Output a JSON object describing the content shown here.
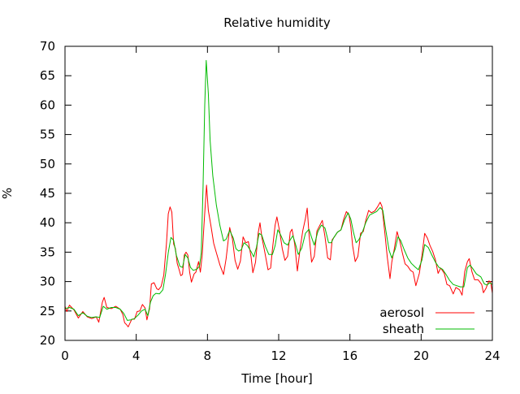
{
  "chart_data": {
    "type": "line",
    "title": "Relative humidity",
    "xlabel": "Time [hour]",
    "ylabel": "%",
    "xlim": [
      0,
      24
    ],
    "ylim": [
      20,
      70
    ],
    "x_ticks": [
      "0",
      "4",
      "8",
      "12",
      "16",
      "20",
      "24"
    ],
    "y_ticks": [
      "20",
      "25",
      "30",
      "35",
      "40",
      "45",
      "50",
      "55",
      "60",
      "65",
      "70"
    ],
    "grid": false,
    "legend_position": "bottom-right",
    "series": [
      {
        "name": "aerosol",
        "color": "#ff0000",
        "points": [
          [
            0.0,
            25.8
          ],
          [
            0.1,
            24.9
          ],
          [
            0.25,
            26.0
          ],
          [
            0.5,
            25.2
          ],
          [
            0.75,
            23.8
          ],
          [
            1.0,
            24.9
          ],
          [
            1.25,
            24.0
          ],
          [
            1.5,
            23.7
          ],
          [
            1.75,
            24.0
          ],
          [
            1.9,
            23.1
          ],
          [
            2.1,
            26.5
          ],
          [
            2.2,
            27.3
          ],
          [
            2.35,
            25.6
          ],
          [
            2.6,
            25.4
          ],
          [
            2.85,
            25.8
          ],
          [
            3.1,
            25.3
          ],
          [
            3.25,
            24.4
          ],
          [
            3.35,
            23.0
          ],
          [
            3.45,
            22.7
          ],
          [
            3.55,
            22.3
          ],
          [
            3.75,
            23.6
          ],
          [
            3.9,
            23.6
          ],
          [
            4.05,
            24.9
          ],
          [
            4.2,
            25.0
          ],
          [
            4.35,
            26.1
          ],
          [
            4.5,
            25.5
          ],
          [
            4.6,
            23.5
          ],
          [
            4.75,
            25.4
          ],
          [
            4.85,
            29.6
          ],
          [
            5.0,
            29.8
          ],
          [
            5.15,
            28.8
          ],
          [
            5.25,
            28.6
          ],
          [
            5.4,
            29.2
          ],
          [
            5.55,
            31.1
          ],
          [
            5.7,
            36.5
          ],
          [
            5.8,
            41.5
          ],
          [
            5.9,
            42.7
          ],
          [
            6.0,
            41.8
          ],
          [
            6.1,
            36.4
          ],
          [
            6.2,
            35.6
          ],
          [
            6.3,
            33.1
          ],
          [
            6.4,
            32.1
          ],
          [
            6.5,
            31.0
          ],
          [
            6.6,
            31.2
          ],
          [
            6.7,
            34.5
          ],
          [
            6.8,
            35.0
          ],
          [
            6.9,
            34.5
          ],
          [
            7.0,
            31.6
          ],
          [
            7.1,
            29.9
          ],
          [
            7.25,
            31.3
          ],
          [
            7.35,
            31.6
          ],
          [
            7.5,
            33.4
          ],
          [
            7.6,
            31.6
          ],
          [
            7.7,
            34.4
          ],
          [
            7.8,
            39.5
          ],
          [
            7.95,
            46.4
          ],
          [
            8.05,
            42.1
          ],
          [
            8.2,
            39.4
          ],
          [
            8.35,
            36.5
          ],
          [
            8.5,
            34.9
          ],
          [
            8.7,
            32.8
          ],
          [
            8.9,
            31.2
          ],
          [
            9.05,
            33.9
          ],
          [
            9.25,
            39.2
          ],
          [
            9.4,
            37.3
          ],
          [
            9.55,
            33.6
          ],
          [
            9.7,
            32.1
          ],
          [
            9.85,
            33.5
          ],
          [
            10.0,
            37.6
          ],
          [
            10.15,
            36.6
          ],
          [
            10.3,
            36.8
          ],
          [
            10.45,
            34.2
          ],
          [
            10.55,
            31.5
          ],
          [
            10.7,
            33.3
          ],
          [
            10.85,
            38.3
          ],
          [
            10.95,
            40.0
          ],
          [
            11.05,
            37.6
          ],
          [
            11.2,
            35.3
          ],
          [
            11.4,
            32.0
          ],
          [
            11.55,
            32.3
          ],
          [
            11.65,
            35.5
          ],
          [
            11.8,
            39.6
          ],
          [
            11.9,
            41.0
          ],
          [
            12.05,
            38.6
          ],
          [
            12.2,
            35.6
          ],
          [
            12.35,
            33.6
          ],
          [
            12.5,
            34.3
          ],
          [
            12.65,
            38.4
          ],
          [
            12.75,
            38.9
          ],
          [
            12.9,
            36.4
          ],
          [
            13.05,
            31.8
          ],
          [
            13.2,
            35.5
          ],
          [
            13.35,
            38.6
          ],
          [
            13.5,
            40.7
          ],
          [
            13.6,
            42.5
          ],
          [
            13.7,
            38.1
          ],
          [
            13.85,
            33.3
          ],
          [
            14.0,
            34.3
          ],
          [
            14.15,
            38.6
          ],
          [
            14.3,
            39.5
          ],
          [
            14.45,
            40.4
          ],
          [
            14.6,
            37.6
          ],
          [
            14.75,
            34.0
          ],
          [
            14.9,
            33.7
          ],
          [
            15.0,
            37.1
          ],
          [
            15.15,
            37.7
          ],
          [
            15.3,
            38.4
          ],
          [
            15.5,
            38.8
          ],
          [
            15.65,
            40.6
          ],
          [
            15.8,
            41.9
          ],
          [
            15.95,
            41.3
          ],
          [
            16.05,
            39.3
          ],
          [
            16.15,
            36.1
          ],
          [
            16.3,
            33.4
          ],
          [
            16.45,
            34.3
          ],
          [
            16.6,
            38.2
          ],
          [
            16.75,
            38.5
          ],
          [
            16.9,
            40.5
          ],
          [
            17.05,
            42.1
          ],
          [
            17.2,
            41.7
          ],
          [
            17.4,
            42.0
          ],
          [
            17.55,
            42.7
          ],
          [
            17.7,
            43.5
          ],
          [
            17.8,
            42.8
          ],
          [
            17.95,
            38.6
          ],
          [
            18.1,
            34.1
          ],
          [
            18.25,
            30.5
          ],
          [
            18.35,
            33.3
          ],
          [
            18.5,
            35.7
          ],
          [
            18.65,
            38.5
          ],
          [
            18.8,
            36.9
          ],
          [
            18.95,
            34.8
          ],
          [
            19.1,
            33.0
          ],
          [
            19.25,
            32.6
          ],
          [
            19.4,
            31.9
          ],
          [
            19.55,
            31.6
          ],
          [
            19.7,
            29.3
          ],
          [
            19.9,
            31.4
          ],
          [
            20.05,
            34.5
          ],
          [
            20.2,
            38.2
          ],
          [
            20.35,
            37.4
          ],
          [
            20.5,
            36.1
          ],
          [
            20.65,
            35.1
          ],
          [
            20.8,
            33.7
          ],
          [
            20.95,
            31.4
          ],
          [
            21.1,
            32.3
          ],
          [
            21.3,
            31.4
          ],
          [
            21.45,
            29.5
          ],
          [
            21.6,
            29.3
          ],
          [
            21.8,
            27.9
          ],
          [
            21.95,
            29.0
          ],
          [
            22.15,
            28.6
          ],
          [
            22.3,
            27.7
          ],
          [
            22.45,
            31.7
          ],
          [
            22.6,
            33.4
          ],
          [
            22.7,
            33.9
          ],
          [
            22.85,
            31.7
          ],
          [
            23.0,
            30.3
          ],
          [
            23.2,
            30.3
          ],
          [
            23.4,
            29.5
          ],
          [
            23.5,
            28.1
          ],
          [
            23.65,
            28.9
          ],
          [
            23.8,
            30.1
          ],
          [
            23.9,
            30.0
          ],
          [
            24.0,
            28.0
          ]
        ]
      },
      {
        "name": "sheath",
        "color": "#00bb00",
        "points": [
          [
            0.0,
            25.4
          ],
          [
            0.25,
            25.6
          ],
          [
            0.5,
            25.3
          ],
          [
            0.75,
            24.2
          ],
          [
            1.0,
            24.7
          ],
          [
            1.25,
            24.1
          ],
          [
            1.5,
            23.9
          ],
          [
            1.75,
            24.0
          ],
          [
            1.95,
            23.9
          ],
          [
            2.15,
            25.8
          ],
          [
            2.35,
            25.3
          ],
          [
            2.6,
            25.6
          ],
          [
            2.85,
            25.6
          ],
          [
            3.1,
            25.3
          ],
          [
            3.3,
            24.6
          ],
          [
            3.5,
            23.4
          ],
          [
            3.7,
            23.5
          ],
          [
            3.9,
            23.7
          ],
          [
            4.1,
            24.3
          ],
          [
            4.3,
            25.0
          ],
          [
            4.5,
            25.3
          ],
          [
            4.65,
            24.2
          ],
          [
            4.8,
            26.5
          ],
          [
            4.95,
            27.6
          ],
          [
            5.1,
            28.0
          ],
          [
            5.3,
            27.9
          ],
          [
            5.5,
            28.6
          ],
          [
            5.65,
            31.3
          ],
          [
            5.8,
            34.9
          ],
          [
            5.95,
            37.5
          ],
          [
            6.1,
            37.0
          ],
          [
            6.25,
            34.5
          ],
          [
            6.45,
            32.6
          ],
          [
            6.6,
            32.4
          ],
          [
            6.75,
            34.6
          ],
          [
            6.9,
            34.0
          ],
          [
            7.05,
            32.4
          ],
          [
            7.2,
            31.9
          ],
          [
            7.4,
            32.1
          ],
          [
            7.55,
            32.6
          ],
          [
            7.65,
            34.9
          ],
          [
            7.75,
            46.0
          ],
          [
            7.85,
            60.0
          ],
          [
            7.93,
            67.6
          ],
          [
            8.05,
            62.0
          ],
          [
            8.15,
            54.0
          ],
          [
            8.3,
            48.0
          ],
          [
            8.5,
            43.0
          ],
          [
            8.7,
            39.5
          ],
          [
            8.9,
            36.9
          ],
          [
            9.05,
            37.2
          ],
          [
            9.25,
            38.7
          ],
          [
            9.45,
            37.4
          ],
          [
            9.6,
            35.6
          ],
          [
            9.75,
            35.2
          ],
          [
            9.9,
            35.4
          ],
          [
            10.05,
            36.6
          ],
          [
            10.25,
            36.1
          ],
          [
            10.45,
            35.1
          ],
          [
            10.6,
            34.2
          ],
          [
            10.75,
            35.8
          ],
          [
            10.9,
            38.2
          ],
          [
            11.05,
            37.9
          ],
          [
            11.25,
            36.0
          ],
          [
            11.45,
            34.6
          ],
          [
            11.65,
            34.6
          ],
          [
            11.8,
            36.1
          ],
          [
            11.95,
            38.8
          ],
          [
            12.1,
            38.0
          ],
          [
            12.3,
            36.6
          ],
          [
            12.5,
            36.2
          ],
          [
            12.65,
            37.1
          ],
          [
            12.8,
            37.8
          ],
          [
            12.95,
            36.3
          ],
          [
            13.1,
            34.6
          ],
          [
            13.3,
            35.7
          ],
          [
            13.5,
            38.2
          ],
          [
            13.7,
            38.9
          ],
          [
            13.85,
            37.5
          ],
          [
            14.0,
            36.2
          ],
          [
            14.2,
            38.5
          ],
          [
            14.4,
            39.6
          ],
          [
            14.6,
            39.1
          ],
          [
            14.8,
            36.6
          ],
          [
            14.95,
            36.6
          ],
          [
            15.1,
            37.5
          ],
          [
            15.3,
            38.4
          ],
          [
            15.5,
            38.8
          ],
          [
            15.7,
            40.5
          ],
          [
            15.9,
            41.7
          ],
          [
            16.05,
            40.6
          ],
          [
            16.2,
            38.4
          ],
          [
            16.35,
            36.6
          ],
          [
            16.5,
            37.1
          ],
          [
            16.7,
            38.4
          ],
          [
            16.9,
            40.1
          ],
          [
            17.1,
            41.3
          ],
          [
            17.3,
            41.6
          ],
          [
            17.5,
            41.9
          ],
          [
            17.7,
            42.6
          ],
          [
            17.85,
            42.1
          ],
          [
            18.0,
            39.0
          ],
          [
            18.2,
            35.3
          ],
          [
            18.35,
            34.0
          ],
          [
            18.55,
            35.6
          ],
          [
            18.7,
            37.6
          ],
          [
            18.85,
            37.0
          ],
          [
            19.05,
            35.4
          ],
          [
            19.25,
            34.0
          ],
          [
            19.45,
            33.1
          ],
          [
            19.65,
            32.5
          ],
          [
            19.85,
            32.0
          ],
          [
            20.05,
            33.7
          ],
          [
            20.2,
            36.3
          ],
          [
            20.4,
            35.8
          ],
          [
            20.6,
            34.5
          ],
          [
            20.8,
            33.3
          ],
          [
            21.0,
            32.4
          ],
          [
            21.2,
            32.1
          ],
          [
            21.4,
            31.2
          ],
          [
            21.6,
            30.2
          ],
          [
            21.8,
            29.5
          ],
          [
            22.0,
            29.3
          ],
          [
            22.2,
            29.1
          ],
          [
            22.4,
            29.1
          ],
          [
            22.6,
            32.4
          ],
          [
            22.75,
            32.8
          ],
          [
            22.9,
            32.2
          ],
          [
            23.1,
            31.3
          ],
          [
            23.35,
            30.8
          ],
          [
            23.55,
            29.6
          ],
          [
            23.7,
            29.4
          ],
          [
            23.85,
            29.8
          ],
          [
            24.0,
            29.5
          ]
        ]
      }
    ]
  }
}
